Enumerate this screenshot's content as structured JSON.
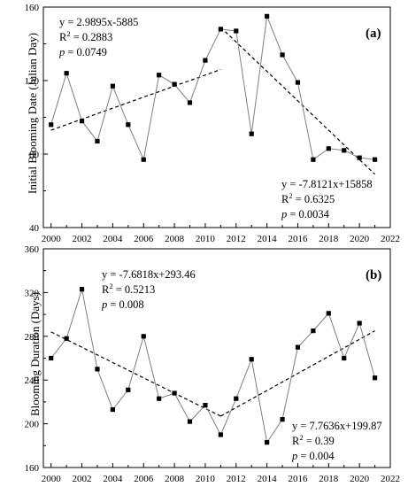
{
  "chart_data": [
    {
      "panel": "(a)",
      "type": "line",
      "ylabel": "Initial Blooming Date (Julian Day)",
      "xlim": [
        1999.5,
        2022
      ],
      "ylim": [
        40,
        160
      ],
      "xticks": [
        2000,
        2002,
        2004,
        2006,
        2008,
        2010,
        2012,
        2014,
        2016,
        2018,
        2020,
        2022
      ],
      "yticks": [
        40,
        80,
        120,
        160
      ],
      "x": [
        2000,
        2001,
        2002,
        2003,
        2004,
        2005,
        2006,
        2007,
        2008,
        2009,
        2010,
        2011,
        2012,
        2013,
        2014,
        2015,
        2016,
        2017,
        2018,
        2019,
        2020,
        2021
      ],
      "values": [
        96,
        124,
        98,
        87,
        117,
        96,
        77,
        123,
        118,
        108,
        131,
        148,
        147,
        91,
        155,
        134,
        119,
        77,
        83,
        82,
        78,
        77
      ],
      "trends": [
        {
          "x": [
            2000,
            2011
          ],
          "y": [
            93,
            126
          ]
        },
        {
          "x": [
            2011,
            2021
          ],
          "y": [
            149,
            69
          ]
        }
      ],
      "annotations": [
        {
          "lines": [
            {
              "text": "y = 2.9895x-5885"
            },
            {
              "text": "R",
              "sup": "2",
              "rest": " = 0.2883"
            },
            {
              "italic": "p",
              "rest": " = 0.0749"
            }
          ]
        },
        {
          "lines": [
            {
              "text": "y = -7.8121x+15858"
            },
            {
              "text": "R",
              "sup": "2",
              "rest": " = 0.6325"
            },
            {
              "italic": "p",
              "rest": " = 0.0034"
            }
          ]
        }
      ]
    },
    {
      "panel": "(b)",
      "type": "line",
      "ylabel": "Blooming Duration (Days)",
      "xlim": [
        1999.5,
        2022
      ],
      "ylim": [
        160,
        360
      ],
      "xticks": [
        2000,
        2002,
        2004,
        2006,
        2008,
        2010,
        2012,
        2014,
        2016,
        2018,
        2020,
        2022
      ],
      "yticks": [
        160,
        200,
        240,
        280,
        320,
        360
      ],
      "x": [
        2000,
        2001,
        2002,
        2003,
        2004,
        2005,
        2006,
        2007,
        2008,
        2009,
        2010,
        2011,
        2012,
        2013,
        2014,
        2015,
        2016,
        2017,
        2018,
        2019,
        2020,
        2021
      ],
      "values": [
        260,
        278,
        323,
        250,
        213,
        231,
        280,
        223,
        228,
        202,
        217,
        190,
        223,
        259,
        183,
        204,
        270,
        285,
        301,
        260,
        292,
        242
      ],
      "trends": [
        {
          "x": [
            2000,
            2011
          ],
          "y": [
            284,
            207
          ]
        },
        {
          "x": [
            2011,
            2021
          ],
          "y": [
            207,
            285
          ]
        }
      ],
      "annotations": [
        {
          "lines": [
            {
              "text": "y = -7.6818x+293.46"
            },
            {
              "text": "R",
              "sup": "2",
              "rest": " = 0.5213"
            },
            {
              "italic": "p",
              "rest": " = 0.008"
            }
          ]
        },
        {
          "lines": [
            {
              "text": "y = 7.7636x+199.87"
            },
            {
              "text": "R",
              "sup": "2",
              "rest": " = 0.39"
            },
            {
              "italic": "p",
              "rest": " = 0.004"
            }
          ]
        }
      ]
    }
  ]
}
